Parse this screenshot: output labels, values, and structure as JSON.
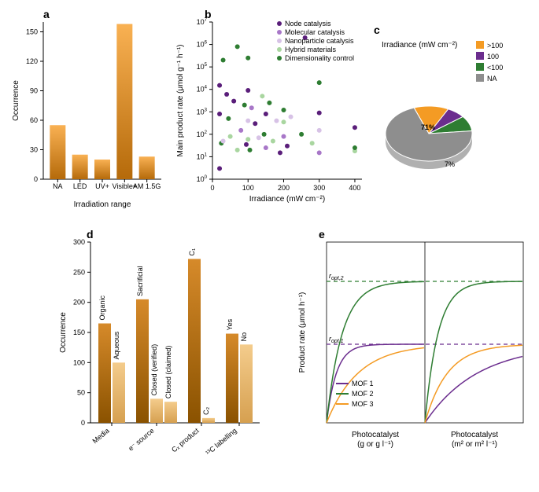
{
  "panel_a": {
    "label": "a",
    "type": "bar",
    "categories": [
      "NA",
      "LED",
      "UV+",
      "Visible+",
      "AM 1.5G"
    ],
    "values": [
      55,
      25,
      20,
      158,
      23
    ],
    "xlabel": "Irradiation range",
    "ylabel": "Occurrence",
    "ylim": [
      0,
      160
    ],
    "ytick_step": 30,
    "bar_gradient_top": "#f9b153",
    "bar_gradient_bottom": "#b56a0a",
    "axis_color": "#000000",
    "label_fontsize": 10
  },
  "panel_b": {
    "label": "b",
    "type": "scatter",
    "xlabel": "Irradiance (mW cm⁻²)",
    "ylabel": "Main product rate (μmol g⁻¹ h⁻¹)",
    "xlim": [
      0,
      420
    ],
    "xtick_step": 100,
    "ylog": true,
    "ylim_exp": [
      0,
      7
    ],
    "series": [
      {
        "name": "Node catalysis",
        "color": "#5a1e7a"
      },
      {
        "name": "Molecular catalysis",
        "color": "#a877c8"
      },
      {
        "name": "Nanoparticle catalysis",
        "color": "#d7c2e6"
      },
      {
        "name": "Hybrid materials",
        "color": "#a9d6a0"
      },
      {
        "name": "Dimensionality control",
        "color": "#2e7d32"
      }
    ],
    "points": [
      {
        "x": 20,
        "y": 800,
        "s": 0
      },
      {
        "x": 20,
        "y": 15000,
        "s": 0
      },
      {
        "x": 20,
        "y": 3,
        "s": 0
      },
      {
        "x": 25,
        "y": 40,
        "s": 4
      },
      {
        "x": 30,
        "y": 200000,
        "s": 4
      },
      {
        "x": 30,
        "y": 50,
        "s": 2
      },
      {
        "x": 40,
        "y": 6000,
        "s": 0
      },
      {
        "x": 45,
        "y": 500,
        "s": 4
      },
      {
        "x": 50,
        "y": 80,
        "s": 3
      },
      {
        "x": 60,
        "y": 3000,
        "s": 0
      },
      {
        "x": 70,
        "y": 800000,
        "s": 4
      },
      {
        "x": 70,
        "y": 20,
        "s": 3
      },
      {
        "x": 80,
        "y": 150,
        "s": 1
      },
      {
        "x": 90,
        "y": 2000,
        "s": 4
      },
      {
        "x": 95,
        "y": 35,
        "s": 0
      },
      {
        "x": 100,
        "y": 400,
        "s": 2
      },
      {
        "x": 100,
        "y": 9000,
        "s": 0
      },
      {
        "x": 100,
        "y": 60,
        "s": 3
      },
      {
        "x": 100,
        "y": 250000,
        "s": 4
      },
      {
        "x": 105,
        "y": 20,
        "s": 4
      },
      {
        "x": 110,
        "y": 1500,
        "s": 1
      },
      {
        "x": 120,
        "y": 300,
        "s": 0
      },
      {
        "x": 130,
        "y": 70,
        "s": 2
      },
      {
        "x": 140,
        "y": 5000,
        "s": 3
      },
      {
        "x": 145,
        "y": 100,
        "s": 4
      },
      {
        "x": 150,
        "y": 800,
        "s": 0
      },
      {
        "x": 150,
        "y": 25,
        "s": 1
      },
      {
        "x": 160,
        "y": 2500,
        "s": 4
      },
      {
        "x": 170,
        "y": 50,
        "s": 3
      },
      {
        "x": 180,
        "y": 400,
        "s": 2
      },
      {
        "x": 190,
        "y": 15,
        "s": 0
      },
      {
        "x": 200,
        "y": 1200,
        "s": 4
      },
      {
        "x": 200,
        "y": 80,
        "s": 1
      },
      {
        "x": 200,
        "y": 350,
        "s": 3
      },
      {
        "x": 210,
        "y": 30,
        "s": 0
      },
      {
        "x": 220,
        "y": 600,
        "s": 2
      },
      {
        "x": 250,
        "y": 100,
        "s": 4
      },
      {
        "x": 260,
        "y": 2000000,
        "s": 0
      },
      {
        "x": 280,
        "y": 40,
        "s": 3
      },
      {
        "x": 300,
        "y": 900,
        "s": 0
      },
      {
        "x": 300,
        "y": 20000,
        "s": 4
      },
      {
        "x": 300,
        "y": 15,
        "s": 1
      },
      {
        "x": 300,
        "y": 150,
        "s": 2
      },
      {
        "x": 400,
        "y": 200,
        "s": 0
      },
      {
        "x": 400,
        "y": 18,
        "s": 3
      },
      {
        "x": 400,
        "y": 25,
        "s": 4
      }
    ],
    "marker_radius": 3
  },
  "panel_c": {
    "label": "c",
    "type": "pie",
    "title": "Irradiance (mW cm⁻²)",
    "slices": [
      {
        "name": ">100",
        "pct": 13,
        "color": "#f49b24"
      },
      {
        "name": "100",
        "pct": 7,
        "color": "#6b2d8e"
      },
      {
        "name": "<100",
        "pct": 9,
        "color": "#2e7d32"
      },
      {
        "name": "NA",
        "pct": 71,
        "color": "#8e8e8e"
      }
    ],
    "center_label": "71%",
    "highlight_label": "7%",
    "legend_box_size": 10
  },
  "panel_d": {
    "label": "d",
    "type": "grouped-bar",
    "ylabel": "Occurrence",
    "ylim": [
      0,
      300
    ],
    "ytick_step": 50,
    "bar_gradient_dark_top": "#d68a2a",
    "bar_gradient_dark_bottom": "#8a5200",
    "bar_gradient_light_top": "#f4cc8c",
    "bar_gradient_light_bottom": "#d6a050",
    "groups": [
      {
        "cat": "Media",
        "bars": [
          {
            "lab": "Organic",
            "v": 165,
            "shade": "dark"
          },
          {
            "lab": "Aqueous",
            "v": 100,
            "shade": "light"
          }
        ]
      },
      {
        "cat": "e⁻ source",
        "bars": [
          {
            "lab": "Sacrificial",
            "v": 205,
            "shade": "dark"
          },
          {
            "lab": "Closed (verified)",
            "v": 40,
            "shade": "light"
          },
          {
            "lab": "Closed (claimed)",
            "v": 35,
            "shade": "light"
          }
        ]
      },
      {
        "cat": "Cₓ product",
        "bars": [
          {
            "lab": "C₁",
            "v": 272,
            "shade": "dark"
          },
          {
            "lab": "C₂",
            "v": 8,
            "shade": "light"
          }
        ]
      },
      {
        "cat": "¹³C labelling",
        "bars": [
          {
            "lab": "Yes",
            "v": 148,
            "shade": "dark"
          },
          {
            "lab": "No",
            "v": 130,
            "shade": "light"
          }
        ]
      }
    ]
  },
  "panel_e": {
    "label": "e",
    "type": "line",
    "ylabel": "Product rate (μmol h⁻¹)",
    "xlabel_left": "Photocatalyst\n(g or g l⁻¹)",
    "xlabel_right": "Photocatalyst\n(m² or m² l⁻¹)",
    "series": [
      {
        "name": "MOF 1",
        "color": "#6b2d8e"
      },
      {
        "name": "MOF 2",
        "color": "#2e7d32"
      },
      {
        "name": "MOF 3",
        "color": "#f49b24"
      }
    ],
    "ropt1": "r",
    "ropt1_sub": "opt,1",
    "ropt2": "r",
    "ropt2_sub": "opt,2",
    "line_width": 1.5
  }
}
